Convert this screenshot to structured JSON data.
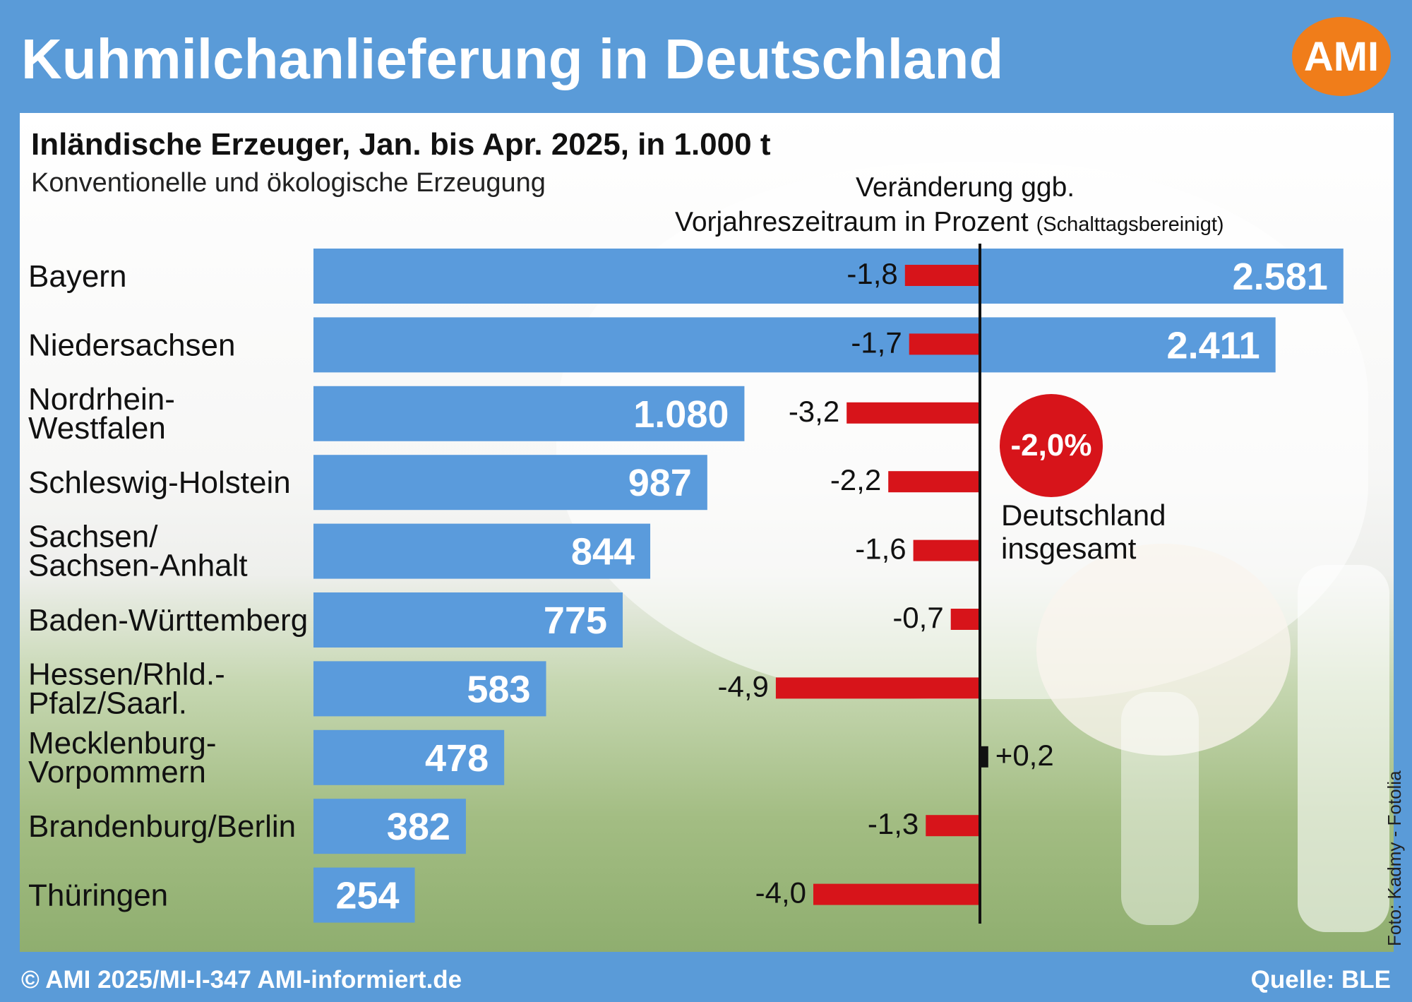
{
  "header": {
    "title": "Kuhmilchanlieferung in Deutschland",
    "logo_text": "AMI",
    "logo_color": "#f07d1a"
  },
  "chart_data": {
    "type": "bar",
    "title": "Inländische Erzeuger, Jan. bis Apr. 2025, in 1.000 t",
    "subtitle": "Konventionelle und ökologische Erzeugung",
    "categories": [
      [
        "Bayern"
      ],
      [
        "Niedersachsen"
      ],
      [
        "Nordrhein-",
        "Westfalen"
      ],
      [
        "Schleswig-Holstein"
      ],
      [
        "Sachsen/",
        "Sachsen-Anhalt"
      ],
      [
        "Baden-Württemberg"
      ],
      [
        "Hessen/Rhld.-",
        "Pfalz/Saarl."
      ],
      [
        "Mecklenburg-",
        "Vorpommern"
      ],
      [
        "Brandenburg/Berlin"
      ],
      [
        "Thüringen"
      ]
    ],
    "series": [
      {
        "values": [
          2581,
          2411,
          1080,
          987,
          844,
          775,
          583,
          478,
          382,
          254
        ],
        "value_labels": [
          "2.581",
          "2.411",
          "1.080",
          "987",
          "844",
          "775",
          "583",
          "478",
          "382",
          "254"
        ],
        "color": "#5a9bdc"
      },
      {
        "values": [
          -1.8,
          -1.7,
          -3.2,
          -2.2,
          -1.6,
          -0.7,
          -4.9,
          0.2,
          -1.3,
          -4.0
        ],
        "value_labels": [
          "-1,8",
          "-1,7",
          "-3,2",
          "-2,2",
          "-1,6",
          "-0,7",
          "-4,9",
          "+0,2",
          "-1,3",
          "-4,0"
        ],
        "color_negative": "#d7141a",
        "color_positive": "#111111"
      }
    ],
    "change_title_line1": "Veränderung ggb.",
    "change_title_line2": "Vorjahreszeitraum in Prozent",
    "change_note": "(Schalttagsbereinigt)",
    "total": {
      "value_label": "-2,0%",
      "label_line1": "Deutschland",
      "label_line2": "insgesamt",
      "color": "#d7141a"
    }
  },
  "photo_credit": "Foto: Kadmy - Fotolia",
  "footer": {
    "left": "© AMI 2025/MI-I-347 AMI-informiert.de",
    "right": "Quelle: BLE"
  }
}
